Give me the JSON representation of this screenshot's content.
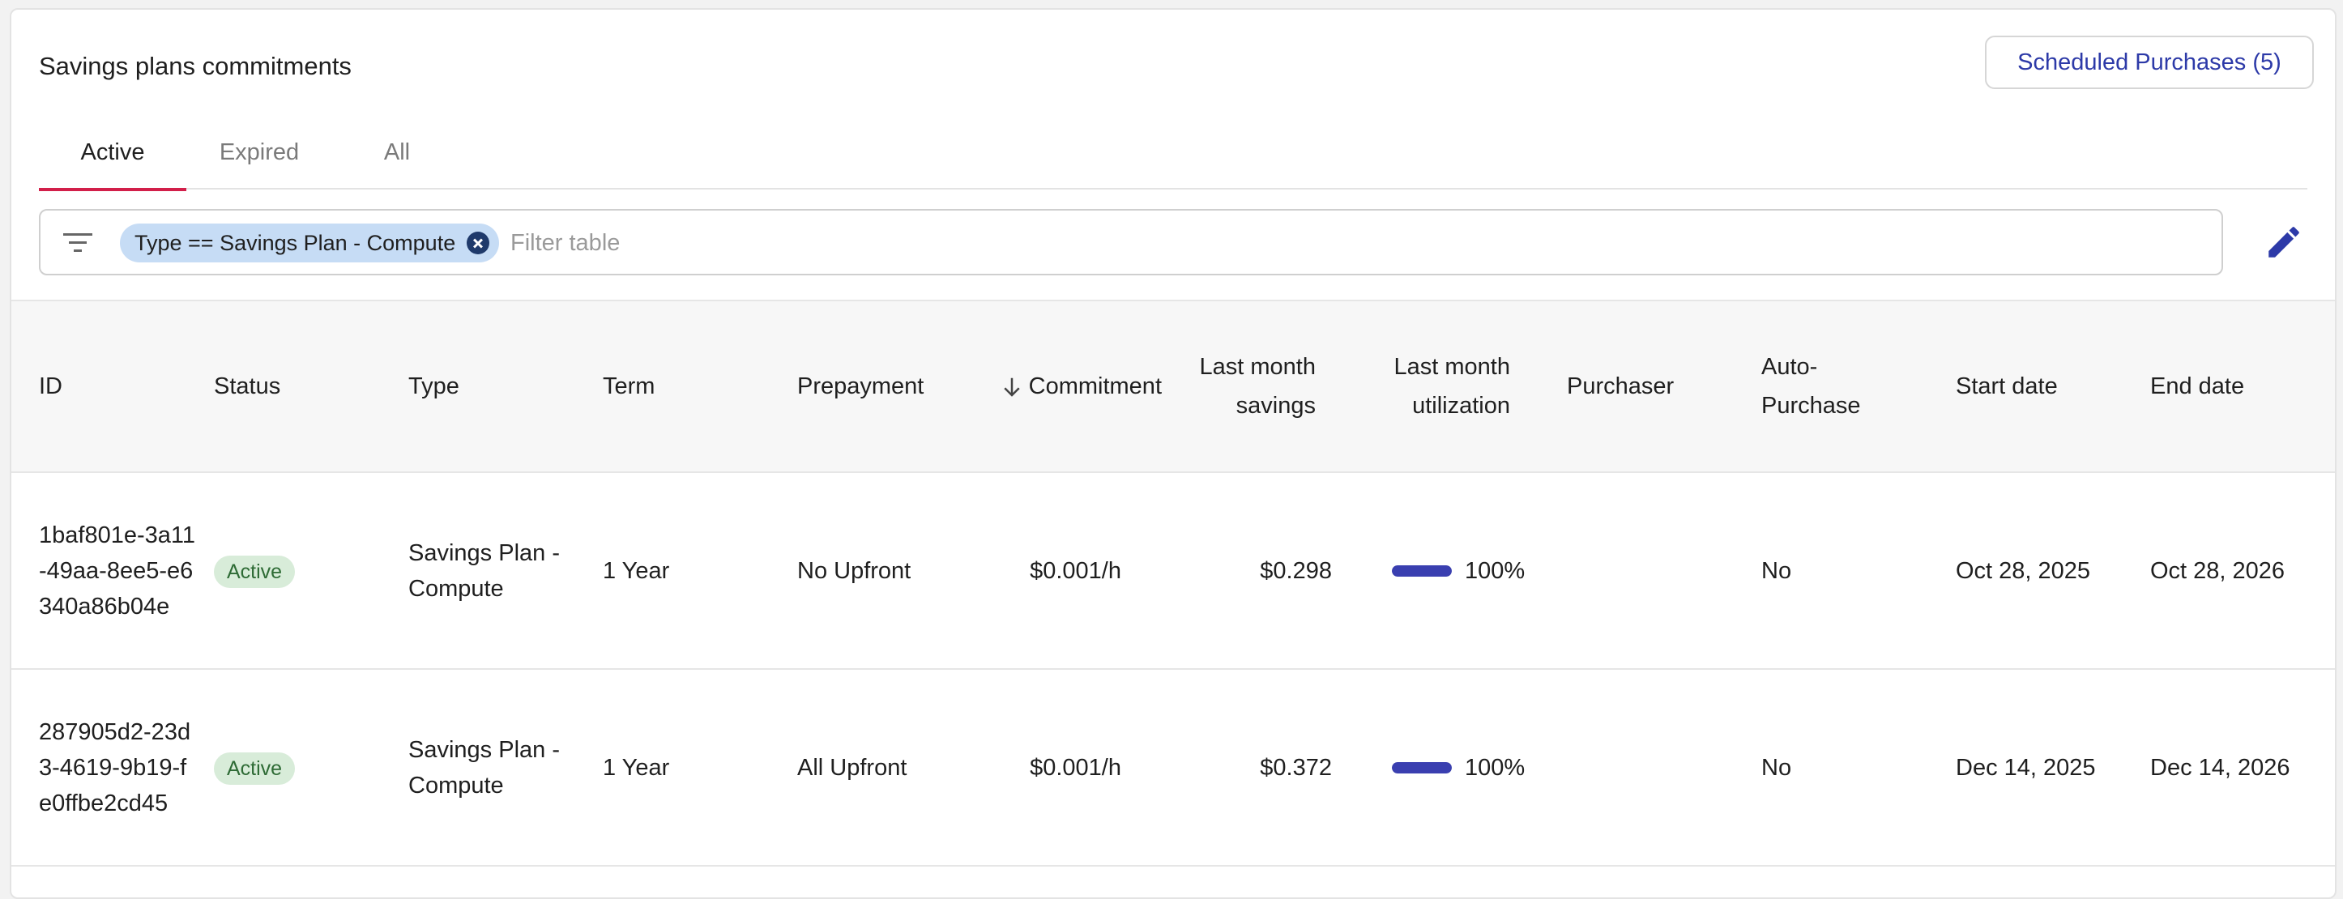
{
  "page": {
    "title": "Savings plans commitments",
    "scheduled_button": "Scheduled Purchases (5)"
  },
  "tabs": [
    {
      "label": "Active",
      "active": true
    },
    {
      "label": "Expired",
      "active": false
    },
    {
      "label": "All",
      "active": false
    }
  ],
  "filter": {
    "chip": "Type == Savings Plan - Compute",
    "placeholder": "Filter table",
    "value": ""
  },
  "table": {
    "headers": {
      "id": "ID",
      "status": "Status",
      "type": "Type",
      "term": "Term",
      "prepayment": "Prepayment",
      "commitment": "Commitment",
      "last_month_savings": "Last month savings",
      "last_month_utilization": "Last month utilization",
      "purchaser": "Purchaser",
      "auto_purchase": "Auto-Purchase",
      "start_date": "Start date",
      "end_date": "End date"
    },
    "sort": {
      "column": "commitment",
      "direction": "descending"
    },
    "rows": [
      {
        "id": "1baf801e-3a11-49aa-8ee5-e6340a86b04e",
        "status": "Active",
        "type": "Savings Plan - Compute",
        "term": "1 Year",
        "prepayment": "No Upfront",
        "commitment": "$0.001/h",
        "last_month_savings": "$0.298",
        "utilization_pct": 100,
        "utilization_label": "100%",
        "purchaser": "",
        "auto_purchase": "No",
        "start_date": "Oct 28, 2025",
        "end_date": "Oct 28, 2026"
      },
      {
        "id": "287905d2-23d3-4619-9b19-fe0ffbe2cd45",
        "status": "Active",
        "type": "Savings Plan - Compute",
        "term": "1 Year",
        "prepayment": "All Upfront",
        "commitment": "$0.001/h",
        "last_month_savings": "$0.372",
        "utilization_pct": 100,
        "utilization_label": "100%",
        "purchaser": "",
        "auto_purchase": "No",
        "start_date": "Dec 14, 2025",
        "end_date": "Dec 14, 2026"
      }
    ]
  },
  "colors": {
    "accent": "#2d3aa8",
    "tab_indicator": "#d21f4a",
    "chip_bg": "#c6dcf5",
    "badge_bg": "#d8ecd9",
    "badge_text": "#2e6b35",
    "utilization_fill": "#3a3fb0"
  },
  "icons": {
    "filter": "filter-lines-icon",
    "chip_remove": "close-circle-icon",
    "edit": "pencil-icon",
    "sort": "arrow-down-icon"
  }
}
